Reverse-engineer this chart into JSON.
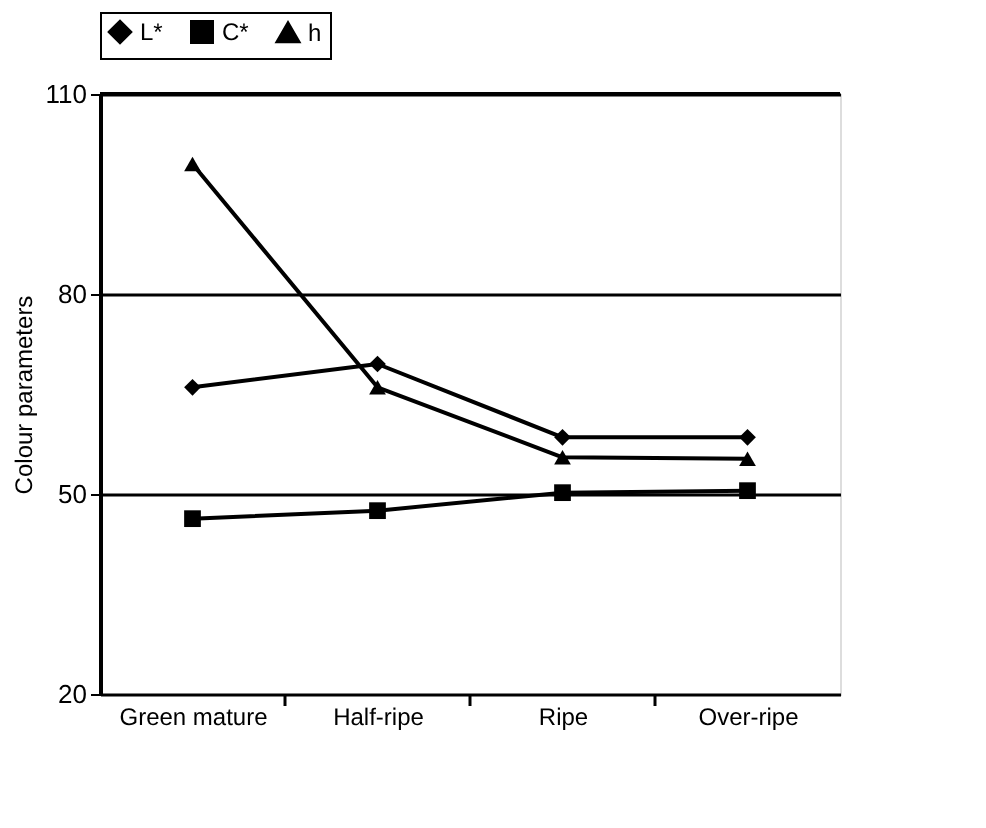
{
  "chart_data": {
    "type": "line",
    "ylabel": "Colour parameters",
    "categories": [
      "Green mature",
      "Half-ripe",
      "Ripe",
      "Over-ripe"
    ],
    "series": [
      {
        "name": "L*",
        "color": "#000000",
        "marker": "diamond",
        "values": [
          66,
          69.5,
          58.5,
          58.5
        ]
      },
      {
        "name": "C*",
        "color": "#000000",
        "marker": "square",
        "values": [
          46.3,
          47.5,
          50.2,
          50.5
        ]
      },
      {
        "name": "h",
        "color": "#000000",
        "marker": "triangle",
        "values": [
          99.5,
          66,
          55.5,
          55.3
        ]
      }
    ],
    "ylim": [
      20,
      110
    ],
    "yticks": [
      20,
      50,
      80,
      110
    ],
    "grid": "y",
    "legend": "top",
    "line_style": "solid"
  }
}
